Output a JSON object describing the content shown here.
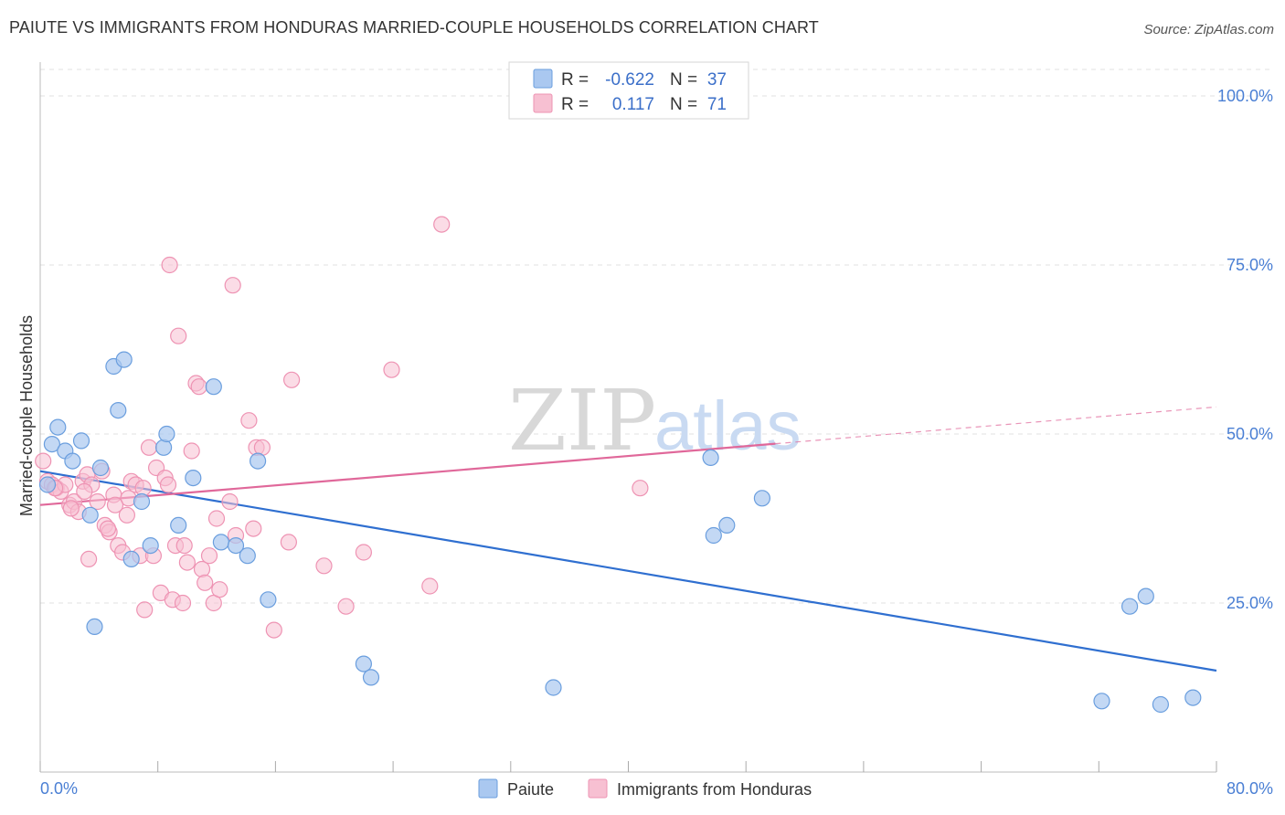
{
  "title": "PAIUTE VS IMMIGRANTS FROM HONDURAS MARRIED-COUPLE HOUSEHOLDS CORRELATION CHART",
  "source": "Source: ZipAtlas.com",
  "watermark": "ZIPatlas",
  "colors": {
    "paiute_fill": "#aac8f0",
    "paiute_stroke": "#6a9ede",
    "paiute_line": "#2f6fd0",
    "honduras_fill": "#f7c0d2",
    "honduras_stroke": "#ee93b3",
    "honduras_line": "#e0689a",
    "tick_text": "#4a7fd4",
    "grid": "#e0e0e0"
  },
  "legend": {
    "rows": [
      {
        "r_label": "R =",
        "r_value": "-0.622",
        "n_label": "N =",
        "n_value": "37"
      },
      {
        "r_label": "R =",
        "r_value": "0.117",
        "n_label": "N =",
        "n_value": "71"
      }
    ]
  },
  "chart_data": {
    "type": "scatter",
    "title": "PAIUTE VS IMMIGRANTS FROM HONDURAS MARRIED-COUPLE HOUSEHOLDS CORRELATION CHART",
    "xlabel": "",
    "ylabel": "Married-couple Households",
    "xlim": [
      0,
      80
    ],
    "ylim": [
      0,
      105
    ],
    "x_tick_labels": [
      "0.0%",
      "80.0%"
    ],
    "y_ticks": [
      25,
      50,
      75,
      100
    ],
    "y_tick_labels": [
      "25.0%",
      "50.0%",
      "75.0%",
      "100.0%"
    ],
    "grid": true,
    "legend_position": "top-center",
    "series": [
      {
        "name": "Paiute",
        "r": -0.622,
        "n": 37,
        "trend": {
          "x0": 0,
          "y0": 44.5,
          "x1": 80,
          "y1": 15.0
        },
        "points": [
          [
            0.5,
            42.5
          ],
          [
            0.8,
            48.5
          ],
          [
            1.2,
            51.0
          ],
          [
            1.7,
            47.5
          ],
          [
            2.2,
            46.0
          ],
          [
            2.8,
            49.0
          ],
          [
            3.4,
            38.0
          ],
          [
            3.7,
            21.5
          ],
          [
            4.1,
            45.0
          ],
          [
            5.0,
            60.0
          ],
          [
            5.3,
            53.5
          ],
          [
            5.7,
            61.0
          ],
          [
            6.2,
            31.5
          ],
          [
            6.9,
            40.0
          ],
          [
            7.5,
            33.5
          ],
          [
            8.4,
            48.0
          ],
          [
            8.6,
            50.0
          ],
          [
            9.4,
            36.5
          ],
          [
            10.4,
            43.5
          ],
          [
            11.8,
            57.0
          ],
          [
            12.3,
            34.0
          ],
          [
            13.3,
            33.5
          ],
          [
            14.1,
            32.0
          ],
          [
            14.8,
            46.0
          ],
          [
            15.5,
            25.5
          ],
          [
            22.0,
            16.0
          ],
          [
            22.5,
            14.0
          ],
          [
            34.9,
            12.5
          ],
          [
            45.6,
            46.5
          ],
          [
            45.8,
            35.0
          ],
          [
            46.7,
            36.5
          ],
          [
            49.1,
            40.5
          ],
          [
            72.2,
            10.5
          ],
          [
            74.1,
            24.5
          ],
          [
            75.2,
            26.0
          ],
          [
            76.2,
            10.0
          ],
          [
            78.4,
            11.0
          ]
        ]
      },
      {
        "name": "Immigrants from Honduras",
        "r": 0.117,
        "n": 71,
        "trend": {
          "x0": 0,
          "y0": 39.5,
          "x1": 80,
          "y1": 54.0,
          "solid_until_x": 50
        },
        "points": [
          [
            0.2,
            46.0
          ],
          [
            0.5,
            43.0
          ],
          [
            0.8,
            42.5
          ],
          [
            1.1,
            42.0
          ],
          [
            1.4,
            41.5
          ],
          [
            1.7,
            42.5
          ],
          [
            2.0,
            39.5
          ],
          [
            2.3,
            40.0
          ],
          [
            2.6,
            38.5
          ],
          [
            2.9,
            43.0
          ],
          [
            3.2,
            44.0
          ],
          [
            3.5,
            42.5
          ],
          [
            3.9,
            40.0
          ],
          [
            4.2,
            44.5
          ],
          [
            4.4,
            36.5
          ],
          [
            4.7,
            35.5
          ],
          [
            5.0,
            41.0
          ],
          [
            5.3,
            33.5
          ],
          [
            5.6,
            32.5
          ],
          [
            5.9,
            38.0
          ],
          [
            6.2,
            43.0
          ],
          [
            6.5,
            42.5
          ],
          [
            6.8,
            32.0
          ],
          [
            7.1,
            24.0
          ],
          [
            7.4,
            48.0
          ],
          [
            7.7,
            32.0
          ],
          [
            7.9,
            45.0
          ],
          [
            8.2,
            26.5
          ],
          [
            8.5,
            43.5
          ],
          [
            8.7,
            42.5
          ],
          [
            9.0,
            25.5
          ],
          [
            9.2,
            33.5
          ],
          [
            9.4,
            64.5
          ],
          [
            9.7,
            25.0
          ],
          [
            10.0,
            31.0
          ],
          [
            10.3,
            47.5
          ],
          [
            10.6,
            57.5
          ],
          [
            10.8,
            57.0
          ],
          [
            11.0,
            30.0
          ],
          [
            11.2,
            28.0
          ],
          [
            11.5,
            32.0
          ],
          [
            11.8,
            25.0
          ],
          [
            12.0,
            37.5
          ],
          [
            12.2,
            27.0
          ],
          [
            12.9,
            40.0
          ],
          [
            13.3,
            35.0
          ],
          [
            14.2,
            52.0
          ],
          [
            14.5,
            36.0
          ],
          [
            14.7,
            48.0
          ],
          [
            15.1,
            48.0
          ],
          [
            15.9,
            21.0
          ],
          [
            16.9,
            34.0
          ],
          [
            17.1,
            58.0
          ],
          [
            19.3,
            30.5
          ],
          [
            20.8,
            24.5
          ],
          [
            22.0,
            32.5
          ],
          [
            23.9,
            59.5
          ],
          [
            26.5,
            27.5
          ],
          [
            27.3,
            81.0
          ],
          [
            40.8,
            42.0
          ],
          [
            8.8,
            75.0
          ],
          [
            13.1,
            72.0
          ],
          [
            1.0,
            42.0
          ],
          [
            2.1,
            39.0
          ],
          [
            3.0,
            41.5
          ],
          [
            4.6,
            36.0
          ],
          [
            6.0,
            40.5
          ],
          [
            3.3,
            31.5
          ],
          [
            5.1,
            39.5
          ],
          [
            7.0,
            42.0
          ],
          [
            9.8,
            33.5
          ]
        ]
      }
    ]
  }
}
